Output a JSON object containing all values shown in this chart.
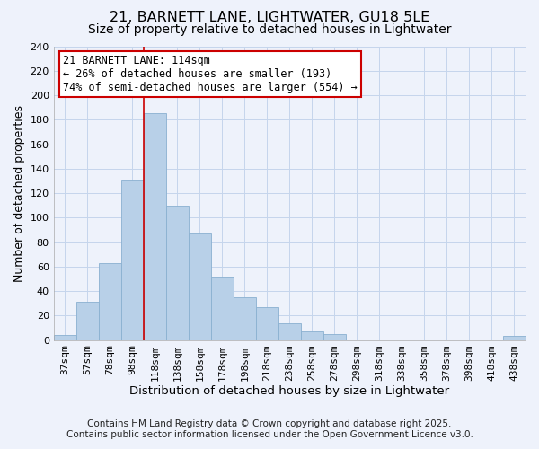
{
  "title": "21, BARNETT LANE, LIGHTWATER, GU18 5LE",
  "subtitle": "Size of property relative to detached houses in Lightwater",
  "xlabel": "Distribution of detached houses by size in Lightwater",
  "ylabel": "Number of detached properties",
  "bar_labels": [
    "37sqm",
    "57sqm",
    "78sqm",
    "98sqm",
    "118sqm",
    "138sqm",
    "158sqm",
    "178sqm",
    "198sqm",
    "218sqm",
    "238sqm",
    "258sqm",
    "278sqm",
    "298sqm",
    "318sqm",
    "338sqm",
    "358sqm",
    "378sqm",
    "398sqm",
    "418sqm",
    "438sqm"
  ],
  "bar_values": [
    4,
    31,
    63,
    130,
    185,
    110,
    87,
    51,
    35,
    27,
    14,
    7,
    5,
    0,
    0,
    0,
    0,
    0,
    0,
    0,
    3
  ],
  "bar_color": "#b8d0e8",
  "bar_edge_color": "#8ab0d0",
  "background_color": "#eef2fb",
  "grid_color": "#c5d5ec",
  "vline_x_idx": 4,
  "vline_color": "#cc0000",
  "annotation_text": "21 BARNETT LANE: 114sqm\n← 26% of detached houses are smaller (193)\n74% of semi-detached houses are larger (554) →",
  "annotation_box_color": "#ffffff",
  "annotation_box_edge": "#cc0000",
  "ylim": [
    0,
    240
  ],
  "yticks": [
    0,
    20,
    40,
    60,
    80,
    100,
    120,
    140,
    160,
    180,
    200,
    220,
    240
  ],
  "footnote1": "Contains HM Land Registry data © Crown copyright and database right 2025.",
  "footnote2": "Contains public sector information licensed under the Open Government Licence v3.0.",
  "title_fontsize": 11.5,
  "subtitle_fontsize": 10,
  "xlabel_fontsize": 9.5,
  "ylabel_fontsize": 9,
  "tick_fontsize": 8,
  "annotation_fontsize": 8.5,
  "footnote_fontsize": 7.5
}
